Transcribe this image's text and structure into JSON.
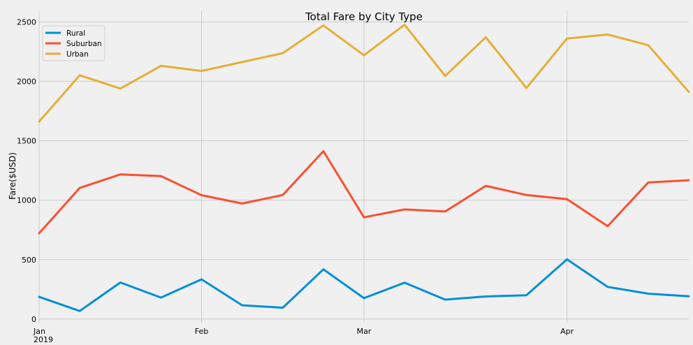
{
  "chart_data": {
    "type": "line",
    "title": "Total Fare by City Type",
    "xlabel": "",
    "ylabel": "Fare($USD)",
    "x": [
      "2019-01-06",
      "2019-01-13",
      "2019-01-20",
      "2019-01-27",
      "2019-02-03",
      "2019-02-10",
      "2019-02-17",
      "2019-02-24",
      "2019-03-03",
      "2019-03-10",
      "2019-03-17",
      "2019-03-24",
      "2019-03-31",
      "2019-04-07",
      "2019-04-14",
      "2019-04-21",
      "2019-04-28"
    ],
    "xlim": [
      0,
      16
    ],
    "ylim": [
      -30,
      2590
    ],
    "x_ticks": [
      {
        "label": "Jan",
        "sublabel": "2019",
        "index": 0
      },
      {
        "label": "Feb",
        "index": 4
      },
      {
        "label": "Mar",
        "index": 8
      },
      {
        "label": "Apr",
        "index": 13
      }
    ],
    "y_ticks": [
      0,
      500,
      1000,
      1500,
      2000,
      2500
    ],
    "grid": true,
    "legend_position": "top-left",
    "series": [
      {
        "name": "Rural",
        "color": "#008fd5",
        "values": [
          187,
          68,
          308,
          181,
          334,
          116,
          96,
          418,
          176,
          306,
          164,
          190,
          200,
          502,
          271,
          214,
          192
        ]
      },
      {
        "name": "Suburban",
        "color": "#fc4f30",
        "values": [
          722,
          1103,
          1217,
          1203,
          1042,
          972,
          1044,
          1412,
          856,
          922,
          905,
          1121,
          1044,
          1009,
          781,
          1149,
          1168
        ]
      },
      {
        "name": "Urban",
        "color": "#e5ae38",
        "values": [
          1661,
          2051,
          1939,
          2130,
          2087,
          2162,
          2237,
          2470,
          2219,
          2476,
          2045,
          2371,
          1943,
          2360,
          2394,
          2304,
          1911
        ]
      }
    ]
  }
}
